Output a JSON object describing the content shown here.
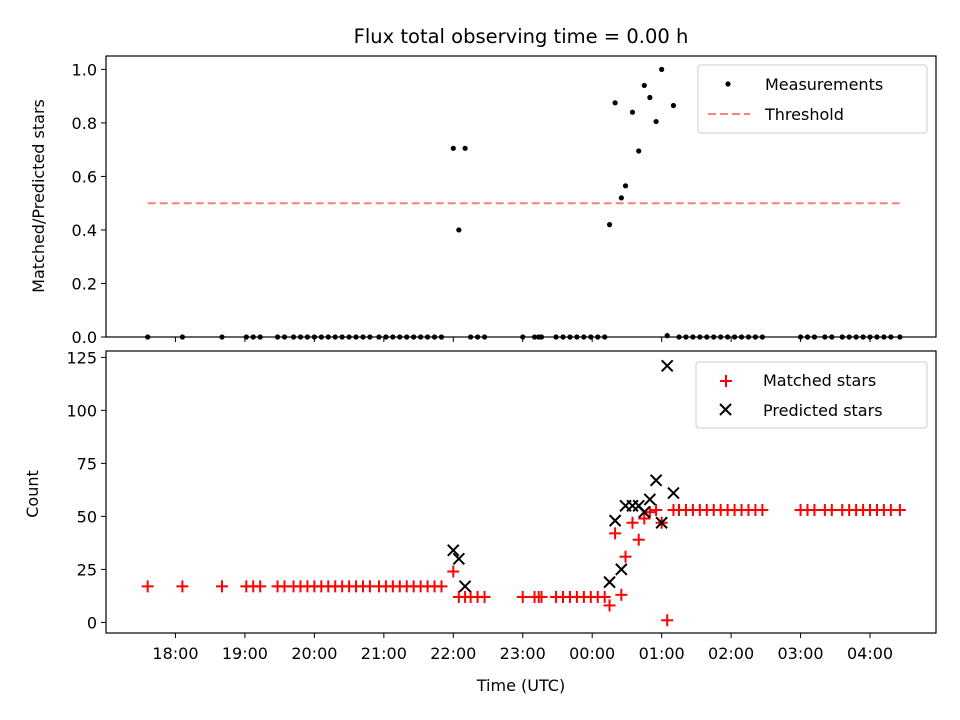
{
  "chart_data": [
    {
      "type": "scatter",
      "title": "Flux total observing time = 0.00 h",
      "ylabel": "Matched/Predicted stars",
      "xlabel": "",
      "x_unit": "hours after 00:00 UTC",
      "xlim": [
        -7.0,
        4.95
      ],
      "ylim": [
        0.0,
        1.05
      ],
      "yticks": [
        "0.0",
        "0.2",
        "0.4",
        "0.6",
        "0.8",
        "1.0"
      ],
      "legend_position": "top-right",
      "threshold": {
        "name": "Threshold",
        "y": 0.5,
        "x_range": [
          -6.4,
          4.45
        ],
        "color": "#ff7f7f",
        "style": "dashed"
      },
      "series": [
        {
          "name": "Measurements",
          "color": "#000000",
          "marker": "dot",
          "points": [
            [
              -6.4,
              0.0
            ],
            [
              -5.9,
              0.0
            ],
            [
              -5.33,
              0.0
            ],
            [
              -4.98,
              0.0
            ],
            [
              -4.88,
              0.0
            ],
            [
              -4.78,
              0.0
            ],
            [
              -4.53,
              0.0
            ],
            [
              -4.43,
              0.0
            ],
            [
              -4.3,
              0.0
            ],
            [
              -4.2,
              0.0
            ],
            [
              -4.1,
              0.0
            ],
            [
              -4.0,
              0.0
            ],
            [
              -3.9,
              0.0
            ],
            [
              -3.8,
              0.0
            ],
            [
              -3.7,
              0.0
            ],
            [
              -3.6,
              0.0
            ],
            [
              -3.5,
              0.0
            ],
            [
              -3.4,
              0.0
            ],
            [
              -3.3,
              0.0
            ],
            [
              -3.2,
              0.0
            ],
            [
              -3.07,
              0.0
            ],
            [
              -2.97,
              0.0
            ],
            [
              -2.87,
              0.0
            ],
            [
              -2.77,
              0.0
            ],
            [
              -2.67,
              0.0
            ],
            [
              -2.57,
              0.0
            ],
            [
              -2.47,
              0.0
            ],
            [
              -2.37,
              0.0
            ],
            [
              -2.27,
              0.0
            ],
            [
              -2.17,
              0.0
            ],
            [
              -2.0,
              0.705
            ],
            [
              -1.92,
              0.4
            ],
            [
              -1.83,
              0.705
            ],
            [
              -1.75,
              0.0
            ],
            [
              -1.65,
              0.0
            ],
            [
              -1.55,
              0.0
            ],
            [
              -1.0,
              0.0
            ],
            [
              -0.83,
              0.0
            ],
            [
              -0.77,
              0.0
            ],
            [
              -0.73,
              0.0
            ],
            [
              -0.52,
              0.0
            ],
            [
              -0.42,
              0.0
            ],
            [
              -0.32,
              0.0
            ],
            [
              -0.22,
              0.0
            ],
            [
              -0.12,
              0.0
            ],
            [
              -0.02,
              0.0
            ],
            [
              0.08,
              0.0
            ],
            [
              0.18,
              0.0
            ],
            [
              0.25,
              0.42
            ],
            [
              0.33,
              0.875
            ],
            [
              0.42,
              0.52
            ],
            [
              0.48,
              0.565
            ],
            [
              0.58,
              0.84
            ],
            [
              0.67,
              0.695
            ],
            [
              0.75,
              0.94
            ],
            [
              0.83,
              0.895
            ],
            [
              0.92,
              0.805
            ],
            [
              1.0,
              1.0
            ],
            [
              1.08,
              0.005
            ],
            [
              1.17,
              0.865
            ],
            [
              1.25,
              0.0
            ],
            [
              1.35,
              0.0
            ],
            [
              1.45,
              0.0
            ],
            [
              1.55,
              0.0
            ],
            [
              1.65,
              0.0
            ],
            [
              1.75,
              0.0
            ],
            [
              1.85,
              0.0
            ],
            [
              1.95,
              0.0
            ],
            [
              2.05,
              0.0
            ],
            [
              2.15,
              0.0
            ],
            [
              2.25,
              0.0
            ],
            [
              2.35,
              0.0
            ],
            [
              2.45,
              0.0
            ],
            [
              3.0,
              0.0
            ],
            [
              3.1,
              0.0
            ],
            [
              3.2,
              0.0
            ],
            [
              3.35,
              0.0
            ],
            [
              3.45,
              0.0
            ],
            [
              3.6,
              0.0
            ],
            [
              3.7,
              0.0
            ],
            [
              3.8,
              0.0
            ],
            [
              3.9,
              0.0
            ],
            [
              4.0,
              0.0
            ],
            [
              4.1,
              0.0
            ],
            [
              4.2,
              0.0
            ],
            [
              4.3,
              0.0
            ],
            [
              4.43,
              0.0
            ]
          ]
        }
      ]
    },
    {
      "type": "scatter",
      "title": "",
      "ylabel": "Count",
      "xlabel": "Time (UTC)",
      "x_unit": "hours after 00:00 UTC",
      "xlim": [
        -7.0,
        4.95
      ],
      "ylim": [
        -5,
        128
      ],
      "yticks": [
        "0",
        "25",
        "50",
        "75",
        "100",
        "125"
      ],
      "xticks": [
        {
          "x": -6,
          "label": "18:00"
        },
        {
          "x": -5,
          "label": "19:00"
        },
        {
          "x": -4,
          "label": "20:00"
        },
        {
          "x": -3,
          "label": "21:00"
        },
        {
          "x": -2,
          "label": "22:00"
        },
        {
          "x": -1,
          "label": "23:00"
        },
        {
          "x": 0,
          "label": "00:00"
        },
        {
          "x": 1,
          "label": "01:00"
        },
        {
          "x": 2,
          "label": "02:00"
        },
        {
          "x": 3,
          "label": "03:00"
        },
        {
          "x": 4,
          "label": "04:00"
        }
      ],
      "legend_position": "top-right",
      "series": [
        {
          "name": "Matched stars",
          "color": "#ff0000",
          "marker": "plus",
          "points": [
            [
              -6.4,
              17
            ],
            [
              -5.9,
              17
            ],
            [
              -5.33,
              17
            ],
            [
              -4.98,
              17
            ],
            [
              -4.88,
              17
            ],
            [
              -4.78,
              17
            ],
            [
              -4.53,
              17
            ],
            [
              -4.43,
              17
            ],
            [
              -4.3,
              17
            ],
            [
              -4.2,
              17
            ],
            [
              -4.1,
              17
            ],
            [
              -4.0,
              17
            ],
            [
              -3.9,
              17
            ],
            [
              -3.8,
              17
            ],
            [
              -3.7,
              17
            ],
            [
              -3.6,
              17
            ],
            [
              -3.5,
              17
            ],
            [
              -3.4,
              17
            ],
            [
              -3.3,
              17
            ],
            [
              -3.2,
              17
            ],
            [
              -3.07,
              17
            ],
            [
              -2.97,
              17
            ],
            [
              -2.87,
              17
            ],
            [
              -2.77,
              17
            ],
            [
              -2.67,
              17
            ],
            [
              -2.57,
              17
            ],
            [
              -2.47,
              17
            ],
            [
              -2.37,
              17
            ],
            [
              -2.27,
              17
            ],
            [
              -2.17,
              17
            ],
            [
              -2.0,
              24
            ],
            [
              -1.92,
              12
            ],
            [
              -1.83,
              12
            ],
            [
              -1.75,
              12
            ],
            [
              -1.65,
              12
            ],
            [
              -1.55,
              12
            ],
            [
              -1.0,
              12
            ],
            [
              -0.83,
              12
            ],
            [
              -0.77,
              12
            ],
            [
              -0.73,
              12
            ],
            [
              -0.52,
              12
            ],
            [
              -0.42,
              12
            ],
            [
              -0.32,
              12
            ],
            [
              -0.22,
              12
            ],
            [
              -0.12,
              12
            ],
            [
              -0.02,
              12
            ],
            [
              0.08,
              12
            ],
            [
              0.18,
              12
            ],
            [
              0.25,
              8
            ],
            [
              0.33,
              42
            ],
            [
              0.42,
              13
            ],
            [
              0.48,
              31
            ],
            [
              0.58,
              47
            ],
            [
              0.67,
              39
            ],
            [
              0.75,
              49
            ],
            [
              0.83,
              52
            ],
            [
              0.92,
              53
            ],
            [
              1.0,
              47
            ],
            [
              1.08,
              1
            ],
            [
              1.17,
              53
            ],
            [
              1.25,
              53
            ],
            [
              1.35,
              53
            ],
            [
              1.45,
              53
            ],
            [
              1.55,
              53
            ],
            [
              1.65,
              53
            ],
            [
              1.75,
              53
            ],
            [
              1.85,
              53
            ],
            [
              1.95,
              53
            ],
            [
              2.05,
              53
            ],
            [
              2.15,
              53
            ],
            [
              2.25,
              53
            ],
            [
              2.35,
              53
            ],
            [
              2.45,
              53
            ],
            [
              3.0,
              53
            ],
            [
              3.1,
              53
            ],
            [
              3.2,
              53
            ],
            [
              3.35,
              53
            ],
            [
              3.45,
              53
            ],
            [
              3.6,
              53
            ],
            [
              3.7,
              53
            ],
            [
              3.8,
              53
            ],
            [
              3.9,
              53
            ],
            [
              4.0,
              53
            ],
            [
              4.1,
              53
            ],
            [
              4.2,
              53
            ],
            [
              4.3,
              53
            ],
            [
              4.43,
              53
            ]
          ]
        },
        {
          "name": "Predicted stars",
          "color": "#000000",
          "marker": "x",
          "points": [
            [
              -2.0,
              34
            ],
            [
              -1.92,
              30
            ],
            [
              -1.83,
              17
            ],
            [
              0.25,
              19
            ],
            [
              0.33,
              48
            ],
            [
              0.42,
              25
            ],
            [
              0.48,
              55
            ],
            [
              0.58,
              55
            ],
            [
              0.67,
              55
            ],
            [
              0.75,
              52
            ],
            [
              0.83,
              58
            ],
            [
              0.92,
              67
            ],
            [
              1.0,
              47
            ],
            [
              1.08,
              121
            ],
            [
              1.17,
              61
            ]
          ]
        }
      ]
    }
  ]
}
